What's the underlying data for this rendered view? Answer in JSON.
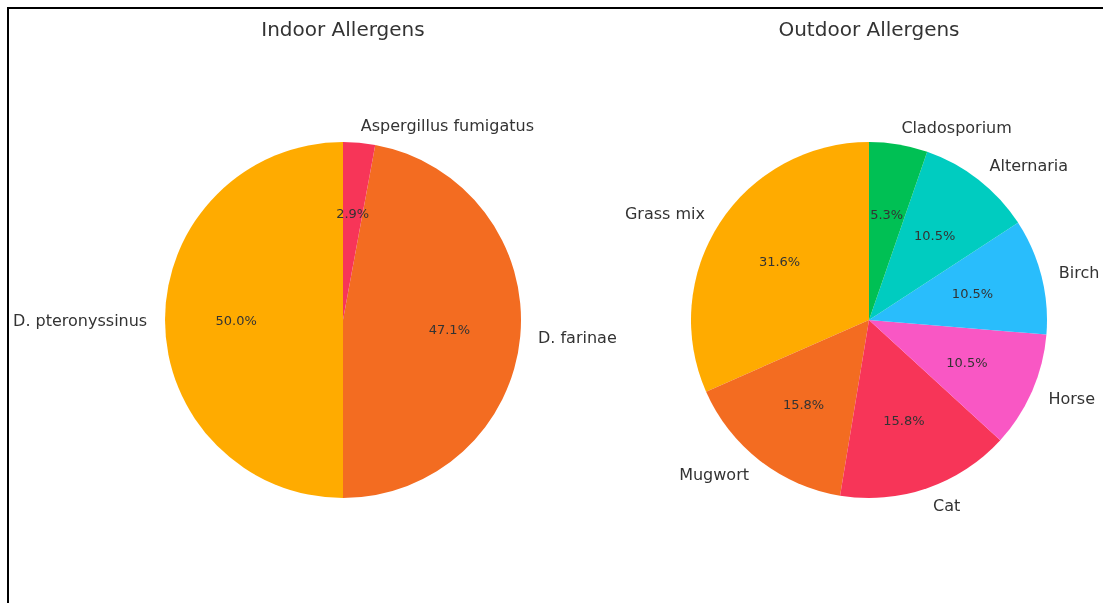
{
  "chart_data": [
    {
      "type": "pie",
      "title": "Indoor Allergens",
      "categories": [
        "D. pteronyssinus",
        "D. farinae",
        "Aspergillus fumigatus"
      ],
      "values": [
        50.0,
        47.1,
        2.9
      ],
      "colors": [
        "#ffab00",
        "#f36c21",
        "#f73558"
      ],
      "value_labels": [
        "50.0%",
        "47.1%",
        "2.9%"
      ]
    },
    {
      "type": "pie",
      "title": "Outdoor Allergens",
      "categories": [
        "Grass mix",
        "Mugwort",
        "Cat",
        "Horse",
        "Birch",
        "Alternaria",
        "Cladosporium"
      ],
      "values": [
        31.6,
        15.8,
        15.8,
        10.5,
        10.5,
        10.5,
        5.3
      ],
      "colors": [
        "#ffab00",
        "#f36c21",
        "#f73558",
        "#f957c4",
        "#29bdfc",
        "#00ccc0",
        "#00c054"
      ],
      "value_labels": [
        "31.6%",
        "15.8%",
        "15.8%",
        "10.5%",
        "10.5%",
        "10.5%",
        "5.3%"
      ]
    }
  ]
}
